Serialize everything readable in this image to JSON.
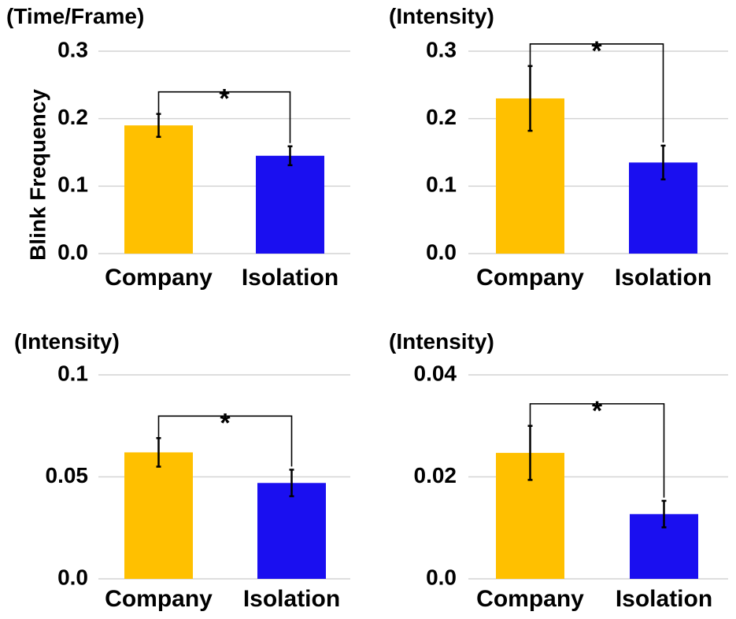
{
  "chart_data": [
    {
      "type": "bar",
      "title": "(Time/Frame)",
      "ylabel": "Blink Frequency",
      "categories": [
        "Company",
        "Isolation"
      ],
      "values": [
        0.19,
        0.145
      ],
      "errors": [
        0.017,
        0.014
      ],
      "ylim": [
        0,
        0.3
      ],
      "yticks": [
        "0.0",
        "0.1",
        "0.2",
        "0.3"
      ],
      "significance": "*",
      "colors": [
        "#FFC000",
        "#1A0FF0"
      ]
    },
    {
      "type": "bar",
      "title": "(Intensity)",
      "ylabel": "",
      "categories": [
        "Company",
        "Isolation"
      ],
      "values": [
        0.23,
        0.135
      ],
      "errors": [
        0.048,
        0.025
      ],
      "ylim": [
        0,
        0.3
      ],
      "yticks": [
        "0.0",
        "0.1",
        "0.2",
        "0.3"
      ],
      "significance": "*",
      "colors": [
        "#FFC000",
        "#1A0FF0"
      ]
    },
    {
      "type": "bar",
      "title": "(Intensity)",
      "ylabel": "",
      "categories": [
        "Company",
        "Isolation"
      ],
      "values": [
        0.062,
        0.047
      ],
      "errors": [
        0.007,
        0.0065
      ],
      "ylim": [
        0,
        0.1
      ],
      "yticks": [
        "0.0",
        "0.05",
        "0.1"
      ],
      "significance": "*",
      "colors": [
        "#FFC000",
        "#1A0FF0"
      ]
    },
    {
      "type": "bar",
      "title": "(Intensity)",
      "ylabel": "",
      "categories": [
        "Company",
        "Isolation"
      ],
      "values": [
        0.0247,
        0.0127
      ],
      "errors": [
        0.0053,
        0.0026
      ],
      "ylim": [
        0,
        0.04
      ],
      "yticks": [
        "0.0",
        "0.02",
        "0.04"
      ],
      "significance": "*",
      "colors": [
        "#FFC000",
        "#1A0FF0"
      ]
    }
  ]
}
